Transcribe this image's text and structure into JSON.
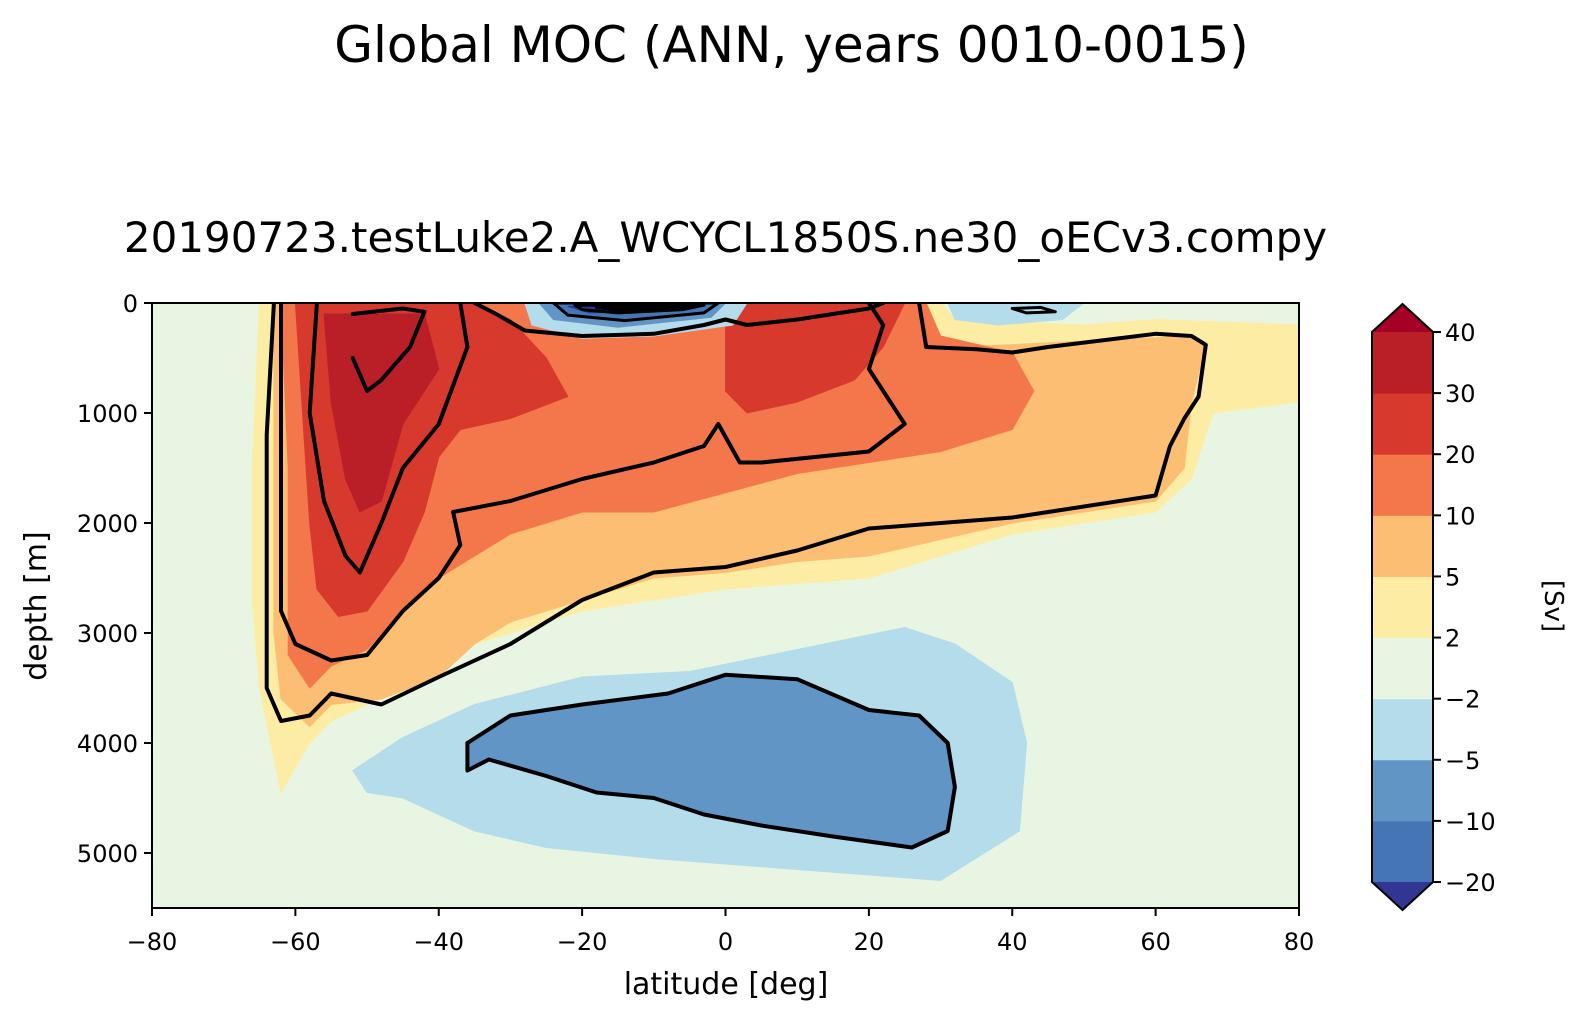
{
  "figure": {
    "suptitle": "Global MOC (ANN, years 0010-0015)",
    "title": "20190723.testLuke2.A_WCYCL1850S.ne30_oECv3.compy"
  },
  "chart_data": {
    "type": "filled-contour",
    "title": "20190723.testLuke2.A_WCYCL1850S.ne30_oECv3.compy",
    "xlabel": "latitude [deg]",
    "ylabel": "depth [m]",
    "xlim": [
      -80,
      80
    ],
    "ylim": [
      5500,
      0
    ],
    "x_ticks": [
      -80,
      -60,
      -40,
      -20,
      0,
      20,
      40,
      60,
      80
    ],
    "x_tick_labels": [
      "−80",
      "−60",
      "−40",
      "−20",
      "0",
      "20",
      "40",
      "60",
      "80"
    ],
    "y_ticks": [
      0,
      1000,
      2000,
      3000,
      4000,
      5000
    ],
    "y_tick_labels": [
      "0",
      "1000",
      "2000",
      "3000",
      "4000",
      "5000"
    ],
    "colorbar": {
      "label": "[Sv]",
      "levels": [
        -20,
        -10,
        -5,
        -2,
        2,
        5,
        10,
        20,
        30,
        40
      ],
      "tick_labels": [
        "−20",
        "−10",
        "−5",
        "−2",
        "2",
        "5",
        "10",
        "20",
        "30",
        "40"
      ],
      "colors": [
        "#4575b4",
        "#6195c5",
        "#b4dcea",
        "#e9f5e3",
        "#fdeda4",
        "#fcbe72",
        "#f4774b",
        "#d73a2c",
        "#ba1e27"
      ],
      "extend_under_color": "#313695",
      "extend_over_color": "#a50026"
    },
    "field_regions": [
      {
        "name": "overturning-2sv",
        "level": 2,
        "color": "#fdeda4",
        "polygon": [
          [
            -65,
            0
          ],
          [
            30,
            0
          ],
          [
            32,
            150
          ],
          [
            50,
            200
          ],
          [
            60,
            150
          ],
          [
            80,
            200
          ],
          [
            80,
            900
          ],
          [
            68,
            1000
          ],
          [
            65,
            1600
          ],
          [
            60,
            1900
          ],
          [
            40,
            2100
          ],
          [
            20,
            2500
          ],
          [
            0,
            2600
          ],
          [
            -20,
            2800
          ],
          [
            -35,
            3100
          ],
          [
            -45,
            3500
          ],
          [
            -55,
            3800
          ],
          [
            -58,
            4000
          ],
          [
            -62,
            4450
          ],
          [
            -65,
            3500
          ],
          [
            -66,
            2700
          ],
          [
            -66,
            1500
          ]
        ]
      },
      {
        "name": "overturning-5sv",
        "level": 5,
        "color": "#fcbe72",
        "polygon": [
          [
            -63,
            0
          ],
          [
            28,
            0
          ],
          [
            28,
            300
          ],
          [
            33,
            400
          ],
          [
            65,
            300
          ],
          [
            67,
            380
          ],
          [
            65,
            900
          ],
          [
            64,
            1500
          ],
          [
            60,
            1800
          ],
          [
            40,
            2000
          ],
          [
            20,
            2300
          ],
          [
            10,
            2350
          ],
          [
            0,
            2450
          ],
          [
            -10,
            2500
          ],
          [
            -20,
            2700
          ],
          [
            -30,
            2900
          ],
          [
            -35,
            3100
          ],
          [
            -40,
            3400
          ],
          [
            -48,
            3600
          ],
          [
            -55,
            3650
          ],
          [
            -58,
            3850
          ],
          [
            -62,
            3600
          ],
          [
            -63,
            3000
          ],
          [
            -63,
            1500
          ]
        ]
      },
      {
        "name": "overturning-10sv",
        "level": 10,
        "color": "#f4774b",
        "polygon": [
          [
            -62,
            0
          ],
          [
            28,
            0
          ],
          [
            30,
            300
          ],
          [
            40,
            450
          ],
          [
            43,
            800
          ],
          [
            40,
            1150
          ],
          [
            30,
            1350
          ],
          [
            10,
            1550
          ],
          [
            -10,
            1900
          ],
          [
            -20,
            1900
          ],
          [
            -30,
            2100
          ],
          [
            -35,
            2300
          ],
          [
            -40,
            2500
          ],
          [
            -45,
            2800
          ],
          [
            -50,
            3150
          ],
          [
            -55,
            3300
          ],
          [
            -58,
            3500
          ],
          [
            -61,
            3200
          ],
          [
            -61,
            1500
          ]
        ]
      },
      {
        "name": "overturning-20sv",
        "level": 20,
        "color": "#d73a2c",
        "polygon": [
          [
            -60,
            0
          ],
          [
            -35,
            0
          ],
          [
            -30,
            150
          ],
          [
            -25,
            500
          ],
          [
            -22,
            850
          ],
          [
            -30,
            1050
          ],
          [
            -37,
            1150
          ],
          [
            -40,
            1400
          ],
          [
            -42,
            1900
          ],
          [
            -45,
            2350
          ],
          [
            -50,
            2800
          ],
          [
            -54,
            2850
          ],
          [
            -57,
            2600
          ],
          [
            -58,
            2000
          ],
          [
            -59,
            1000
          ]
        ]
      },
      {
        "name": "overturning-20sv-equatorial",
        "level": 20,
        "color": "#d73a2c",
        "polygon": [
          [
            0,
            0
          ],
          [
            25,
            0
          ],
          [
            22,
            400
          ],
          [
            18,
            700
          ],
          [
            10,
            900
          ],
          [
            3,
            1000
          ],
          [
            0,
            800
          ]
        ]
      },
      {
        "name": "overturning-30sv",
        "level": 30,
        "color": "#ba1e27",
        "polygon": [
          [
            -56,
            100
          ],
          [
            -42,
            100
          ],
          [
            -40,
            600
          ],
          [
            -45,
            1100
          ],
          [
            -48,
            1800
          ],
          [
            -51,
            1900
          ],
          [
            -53,
            1600
          ],
          [
            -55,
            900
          ]
        ]
      },
      {
        "name": "surface-cell-negative-5sv",
        "level": -5,
        "color": "#b4dcea",
        "polygon": [
          [
            -28,
            0
          ],
          [
            3,
            0
          ],
          [
            1,
            200
          ],
          [
            -10,
            300
          ],
          [
            -20,
            320
          ],
          [
            -27,
            200
          ]
        ]
      },
      {
        "name": "surface-cell-negative-10sv",
        "level": -10,
        "color": "#6195c5",
        "polygon": [
          [
            -26,
            0
          ],
          [
            0,
            0
          ],
          [
            -2,
            130
          ],
          [
            -15,
            220
          ],
          [
            -24,
            150
          ]
        ]
      },
      {
        "name": "surface-cell-negative-20sv",
        "level": -20,
        "color": "#4575b4",
        "polygon": [
          [
            -24,
            0
          ],
          [
            -1,
            0
          ],
          [
            -3,
            90
          ],
          [
            -14,
            160
          ],
          [
            -22,
            110
          ]
        ]
      },
      {
        "name": "surface-cell-minimum",
        "level": -20,
        "color": "#313695",
        "polygon": [
          [
            -22,
            30
          ],
          [
            -4,
            30
          ],
          [
            -7,
            70
          ],
          [
            -19,
            90
          ]
        ]
      },
      {
        "name": "northern-surface-negative",
        "level": -5,
        "color": "#b4dcea",
        "polygon": [
          [
            31,
            0
          ],
          [
            50,
            0
          ],
          [
            47,
            150
          ],
          [
            38,
            200
          ],
          [
            32,
            150
          ]
        ]
      },
      {
        "name": "abyssal-cell-negative-5sv",
        "level": -5,
        "color": "#b4dcea",
        "polygon": [
          [
            -52,
            4250
          ],
          [
            -45,
            3950
          ],
          [
            -35,
            3650
          ],
          [
            -20,
            3400
          ],
          [
            -5,
            3350
          ],
          [
            10,
            3150
          ],
          [
            25,
            2950
          ],
          [
            32,
            3100
          ],
          [
            40,
            3450
          ],
          [
            42,
            4000
          ],
          [
            41,
            4800
          ],
          [
            30,
            5250
          ],
          [
            10,
            5150
          ],
          [
            -10,
            5050
          ],
          [
            -25,
            4950
          ],
          [
            -35,
            4800
          ],
          [
            -45,
            4500
          ],
          [
            -50,
            4450
          ]
        ]
      },
      {
        "name": "abyssal-cell-negative-10sv",
        "level": -10,
        "color": "#6195c5",
        "polygon": [
          [
            -36,
            4000
          ],
          [
            -30,
            3750
          ],
          [
            -20,
            3650
          ],
          [
            -8,
            3550
          ],
          [
            0,
            3380
          ],
          [
            10,
            3420
          ],
          [
            20,
            3700
          ],
          [
            27,
            3750
          ],
          [
            31,
            4000
          ],
          [
            32,
            4400
          ],
          [
            31,
            4800
          ],
          [
            26,
            4950
          ],
          [
            15,
            4850
          ],
          [
            5,
            4750
          ],
          [
            -3,
            4650
          ],
          [
            -10,
            4500
          ],
          [
            -18,
            4450
          ],
          [
            -25,
            4300
          ],
          [
            -33,
            4150
          ],
          [
            -36,
            4250
          ]
        ]
      }
    ],
    "zero_contours": [
      [
        [
          -63,
          0
        ],
        [
          -64,
          1200
        ],
        [
          -64,
          3500
        ],
        [
          -62,
          3800
        ],
        [
          -58,
          3750
        ],
        [
          -55,
          3550
        ],
        [
          -48,
          3650
        ],
        [
          -40,
          3400
        ],
        [
          -30,
          3100
        ],
        [
          -20,
          2700
        ],
        [
          -10,
          2450
        ],
        [
          0,
          2400
        ],
        [
          10,
          2250
        ],
        [
          20,
          2050
        ],
        [
          40,
          1950
        ],
        [
          60,
          1750
        ],
        [
          62,
          1300
        ],
        [
          64,
          1050
        ],
        [
          66,
          850
        ],
        [
          67,
          380
        ],
        [
          65,
          300
        ],
        [
          60,
          280
        ],
        [
          45,
          400
        ],
        [
          40,
          450
        ],
        [
          35,
          420
        ],
        [
          28,
          400
        ],
        [
          27,
          0
        ]
      ],
      [
        [
          -36,
          4000
        ],
        [
          -30,
          3750
        ],
        [
          -20,
          3650
        ],
        [
          -8,
          3550
        ],
        [
          0,
          3380
        ],
        [
          10,
          3420
        ],
        [
          20,
          3700
        ],
        [
          27,
          3750
        ],
        [
          31,
          4000
        ],
        [
          32,
          4400
        ],
        [
          31,
          4800
        ],
        [
          26,
          4950
        ],
        [
          15,
          4850
        ],
        [
          5,
          4750
        ],
        [
          -3,
          4650
        ],
        [
          -10,
          4500
        ],
        [
          -18,
          4450
        ],
        [
          -25,
          4300
        ],
        [
          -33,
          4150
        ],
        [
          -36,
          4250
        ],
        [
          -36,
          4000
        ]
      ]
    ],
    "positive_contours": [
      [
        [
          -62,
          0
        ],
        [
          -62,
          2800
        ],
        [
          -60,
          3100
        ],
        [
          -55,
          3250
        ],
        [
          -50,
          3200
        ],
        [
          -45,
          2800
        ],
        [
          -40,
          2500
        ],
        [
          -37,
          2200
        ],
        [
          -38,
          1900
        ],
        [
          -30,
          1800
        ],
        [
          -20,
          1600
        ],
        [
          -10,
          1450
        ],
        [
          -3,
          1300
        ],
        [
          -1,
          1100
        ],
        [
          2,
          1450
        ],
        [
          5,
          1450
        ],
        [
          20,
          1350
        ],
        [
          25,
          1100
        ],
        [
          20,
          600
        ],
        [
          22,
          200
        ],
        [
          20,
          0
        ]
      ],
      [
        [
          -57,
          0
        ],
        [
          -58,
          1000
        ],
        [
          -56,
          1800
        ],
        [
          -53,
          2300
        ],
        [
          -51,
          2450
        ],
        [
          -48,
          2000
        ],
        [
          -45,
          1500
        ],
        [
          -40,
          1100
        ],
        [
          -36,
          400
        ],
        [
          -37,
          0
        ]
      ],
      [
        [
          -52,
          100
        ],
        [
          -45,
          50
        ],
        [
          -42,
          80
        ],
        [
          -44,
          400
        ],
        [
          -48,
          700
        ],
        [
          -50,
          800
        ],
        [
          -52,
          500
        ]
      ],
      [
        [
          -35,
          0
        ],
        [
          -32,
          100
        ],
        [
          -28,
          250
        ],
        [
          -20,
          300
        ],
        [
          -10,
          280
        ],
        [
          -3,
          200
        ],
        [
          0,
          150
        ],
        [
          3,
          200
        ],
        [
          10,
          150
        ],
        [
          15,
          100
        ],
        [
          20,
          50
        ],
        [
          22,
          0
        ]
      ]
    ],
    "negative_contours": [
      [
        [
          -24,
          0
        ],
        [
          -1,
          0
        ],
        [
          -3,
          90
        ],
        [
          -14,
          160
        ],
        [
          -22,
          110
        ],
        [
          -24,
          0
        ]
      ],
      [
        [
          -21,
          20
        ],
        [
          -3,
          20
        ],
        [
          -6,
          60
        ],
        [
          -15,
          90
        ],
        [
          -20,
          60
        ],
        [
          -21,
          20
        ]
      ],
      [
        [
          -18,
          40
        ],
        [
          -5,
          40
        ],
        [
          -8,
          55
        ],
        [
          -15,
          65
        ],
        [
          -18,
          40
        ]
      ],
      [
        [
          40,
          50
        ],
        [
          44,
          40
        ],
        [
          46,
          80
        ],
        [
          42,
          90
        ],
        [
          40,
          50
        ]
      ]
    ]
  }
}
